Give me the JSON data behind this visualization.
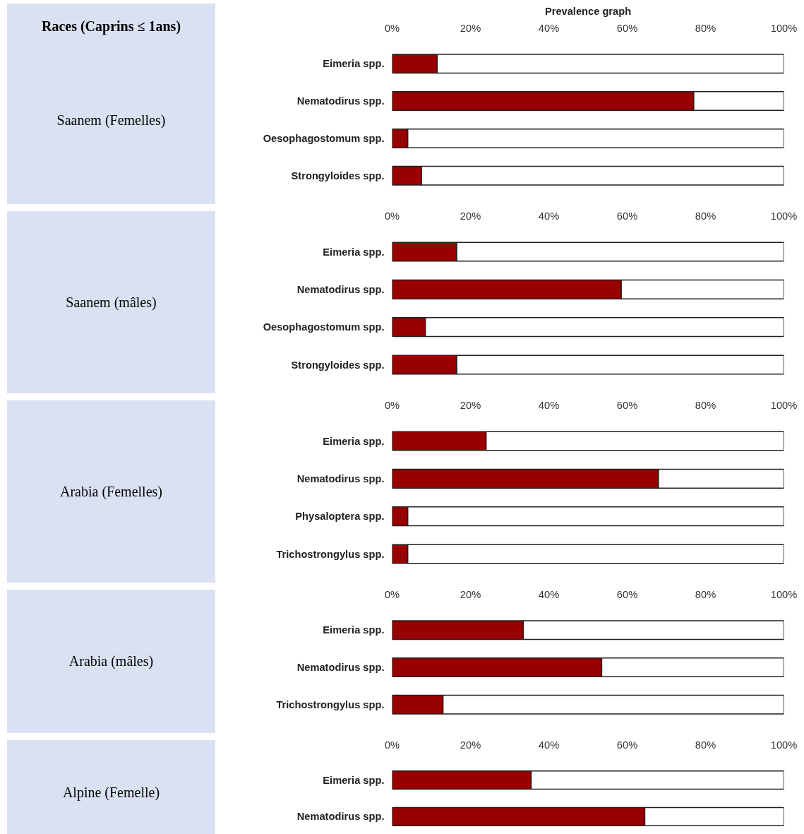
{
  "chart_data": [
    {
      "type": "bar",
      "orientation": "horizontal",
      "stacked": true,
      "title": "Prevalence graph",
      "ylabel": "Saanem (Femelles)",
      "annotations": [
        "Races (Caprins ≤ 1ans)"
      ],
      "categories": [
        "Eimeria spp.",
        "Nematodirus spp.",
        "Oesophagostomum spp.",
        "Strongyloides spp."
      ],
      "series": [
        {
          "color": "#990000",
          "values": [
            11.5,
            77,
            4,
            7.5
          ]
        },
        {
          "color": "#ffffff",
          "values": [
            88.5,
            23,
            96,
            92.5
          ]
        }
      ],
      "xlim": [
        0,
        100
      ],
      "xticks": [
        {
          "value": 0,
          "label": "0%"
        },
        {
          "value": 20,
          "label": "20%"
        },
        {
          "value": 40,
          "label": "40%"
        },
        {
          "value": 60,
          "label": "60%"
        },
        {
          "value": 80,
          "label": "80%"
        },
        {
          "value": 100,
          "label": "100%"
        }
      ],
      "grid": false
    },
    {
      "type": "bar",
      "orientation": "horizontal",
      "stacked": true,
      "ylabel": "Saanem (mâles)",
      "categories": [
        "Eimeria spp.",
        "Nematodirus spp.",
        "Oesophagostomum spp.",
        "Strongyloides spp."
      ],
      "series": [
        {
          "color": "#990000",
          "values": [
            16.5,
            58.5,
            8.5,
            16.5
          ]
        },
        {
          "color": "#ffffff",
          "values": [
            83.5,
            41.5,
            91.5,
            83.5
          ]
        }
      ],
      "xlim": [
        0,
        100
      ],
      "xticks": [
        {
          "value": 0,
          "label": "0%"
        },
        {
          "value": 20,
          "label": "20%"
        },
        {
          "value": 40,
          "label": "40%"
        },
        {
          "value": 60,
          "label": "60%"
        },
        {
          "value": 80,
          "label": "80%"
        },
        {
          "value": 100,
          "label": "100%"
        }
      ],
      "grid": false
    },
    {
      "type": "bar",
      "orientation": "horizontal",
      "stacked": true,
      "ylabel": "Arabia (Femelles)",
      "categories": [
        "Eimeria spp.",
        "Nematodirus spp.",
        "Physaloptera spp.",
        "Trichostrongylus spp."
      ],
      "series": [
        {
          "color": "#990000",
          "values": [
            24,
            68,
            4,
            4
          ]
        },
        {
          "color": "#ffffff",
          "values": [
            76,
            32,
            96,
            96
          ]
        }
      ],
      "xlim": [
        0,
        100
      ],
      "xticks": [
        {
          "value": 0,
          "label": "0%"
        },
        {
          "value": 20,
          "label": "20%"
        },
        {
          "value": 40,
          "label": "40%"
        },
        {
          "value": 60,
          "label": "60%"
        },
        {
          "value": 80,
          "label": "80%"
        },
        {
          "value": 100,
          "label": "100%"
        }
      ],
      "grid": false
    },
    {
      "type": "bar",
      "orientation": "horizontal",
      "stacked": true,
      "ylabel": "Arabia (mâles)",
      "categories": [
        "Eimeria spp.",
        "Nematodirus spp.",
        "Trichostrongylus spp."
      ],
      "series": [
        {
          "color": "#990000",
          "values": [
            33.5,
            53.5,
            13
          ]
        },
        {
          "color": "#ffffff",
          "values": [
            66.5,
            46.5,
            87
          ]
        }
      ],
      "xlim": [
        0,
        100
      ],
      "xticks": [
        {
          "value": 0,
          "label": "0%"
        },
        {
          "value": 20,
          "label": "20%"
        },
        {
          "value": 40,
          "label": "40%"
        },
        {
          "value": 60,
          "label": "60%"
        },
        {
          "value": 80,
          "label": "80%"
        },
        {
          "value": 100,
          "label": "100%"
        }
      ],
      "grid": false
    },
    {
      "type": "bar",
      "orientation": "horizontal",
      "stacked": true,
      "ylabel": "Alpine (Femelle)",
      "categories": [
        "Eimeria spp.",
        "Nematodirus spp."
      ],
      "series": [
        {
          "color": "#990000",
          "values": [
            35.5,
            64.5
          ]
        },
        {
          "color": "#ffffff",
          "values": [
            64.5,
            35.5
          ]
        }
      ],
      "xlim": [
        0,
        100
      ],
      "xticks": [
        {
          "value": 0,
          "label": "0%"
        },
        {
          "value": 20,
          "label": "20%"
        },
        {
          "value": 40,
          "label": "40%"
        },
        {
          "value": 60,
          "label": "60%"
        },
        {
          "value": 80,
          "label": "80%"
        },
        {
          "value": 100,
          "label": "100%"
        }
      ],
      "grid": false
    }
  ]
}
